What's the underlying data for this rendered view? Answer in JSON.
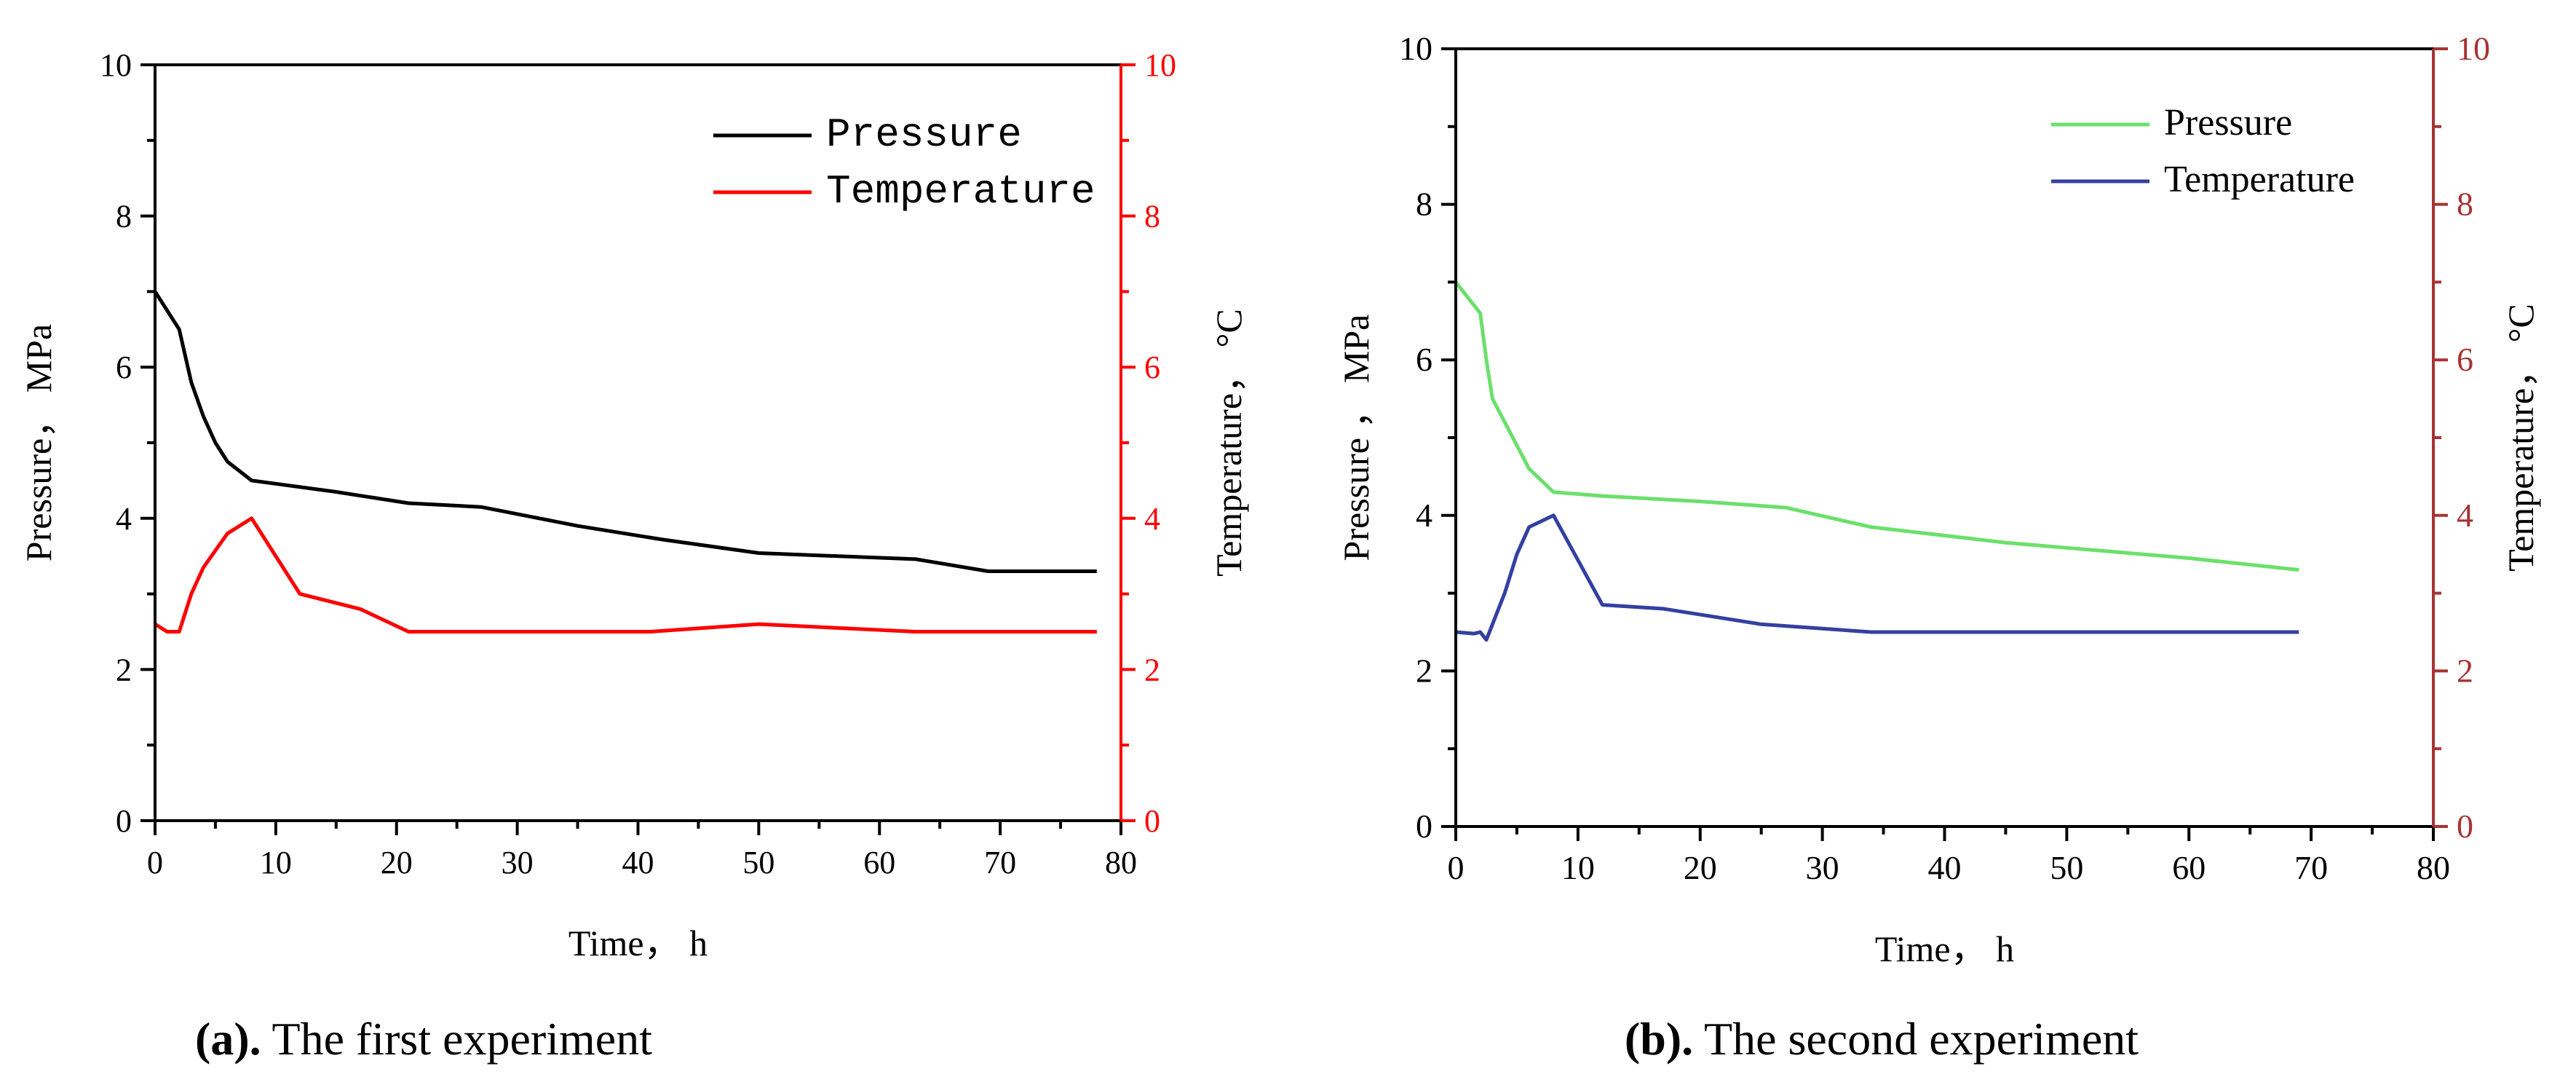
{
  "figure": {
    "caption_a_label": "(a).",
    "caption_a_text": " The first experiment",
    "caption_b_label": "(b).",
    "caption_b_text": " The second experiment"
  },
  "chart_data": [
    {
      "id": "a",
      "type": "line",
      "title": "",
      "xlabel": "Time， h",
      "ylabel": "Pressure， MPa",
      "y2label": "Temperature， °C",
      "xlim": [
        0,
        80
      ],
      "ylim": [
        0,
        10
      ],
      "y2lim": [
        0,
        10
      ],
      "xticks": [
        0,
        10,
        20,
        30,
        40,
        50,
        60,
        70,
        80
      ],
      "yticks": [
        0,
        2,
        4,
        6,
        8,
        10
      ],
      "y2ticks": [
        0,
        2,
        4,
        6,
        8,
        10
      ],
      "legend_position": "top-right",
      "axis_colors": {
        "left": "#000000",
        "right": "#ff0000"
      },
      "series": [
        {
          "name": "Pressure",
          "color": "#000000",
          "axis": "left",
          "x": [
            0,
            2,
            3,
            4,
            5,
            6,
            8,
            15,
            21,
            27,
            35,
            42,
            50,
            63,
            69,
            78
          ],
          "y": [
            7.0,
            6.5,
            5.8,
            5.35,
            5.0,
            4.75,
            4.5,
            4.35,
            4.2,
            4.15,
            3.9,
            3.72,
            3.54,
            3.46,
            3.3,
            3.3
          ]
        },
        {
          "name": "Temperature",
          "color": "#ff0000",
          "axis": "right",
          "x": [
            0,
            0.5,
            1,
            2,
            3,
            4,
            6,
            8,
            12,
            17,
            21,
            30,
            41,
            50,
            63,
            78
          ],
          "y": [
            2.6,
            2.55,
            2.5,
            2.5,
            3.0,
            3.35,
            3.8,
            4.0,
            3.0,
            2.8,
            2.5,
            2.5,
            2.5,
            2.6,
            2.5,
            2.5
          ]
        }
      ]
    },
    {
      "id": "b",
      "type": "line",
      "title": "",
      "xlabel": "Time， h",
      "ylabel": "Pressure ， MPa",
      "y2label": "Temperature， °C",
      "xlim": [
        0,
        80
      ],
      "ylim": [
        0,
        10
      ],
      "y2lim": [
        0,
        10
      ],
      "xticks": [
        0,
        10,
        20,
        30,
        40,
        50,
        60,
        70,
        80
      ],
      "yticks": [
        0,
        2,
        4,
        6,
        8,
        10
      ],
      "y2ticks": [
        0,
        2,
        4,
        6,
        8,
        10
      ],
      "legend_position": "top-right",
      "axis_colors": {
        "left": "#000000",
        "right": "#a83232"
      },
      "series": [
        {
          "name": "Pressure",
          "color": "#6be06b",
          "axis": "left",
          "x": [
            0,
            1,
            2,
            2.5,
            3,
            4,
            6,
            8,
            12,
            20,
            27,
            34,
            45,
            60,
            69
          ],
          "y": [
            7.0,
            6.8,
            6.6,
            6.0,
            5.5,
            5.2,
            4.6,
            4.3,
            4.25,
            4.18,
            4.1,
            3.85,
            3.65,
            3.45,
            3.3
          ]
        },
        {
          "name": "Temperature",
          "color": "#3340a0",
          "axis": "right",
          "x": [
            0,
            1.5,
            2,
            2.5,
            3,
            4,
            5,
            6,
            8,
            12,
            17,
            25,
            34,
            50,
            69
          ],
          "y": [
            2.5,
            2.48,
            2.5,
            2.4,
            2.6,
            3.0,
            3.5,
            3.85,
            4.0,
            2.85,
            2.8,
            2.6,
            2.5,
            2.5,
            2.5
          ]
        }
      ]
    }
  ]
}
